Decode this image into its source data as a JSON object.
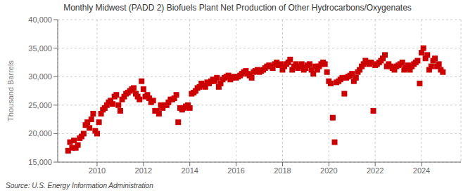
{
  "chart_data": {
    "type": "scatter",
    "title": "Monthly Midwest (PADD 2) Biofuels Plant Net Production of Other Hydrocarbons/Oxygenates",
    "ylabel": "Thousand Barrels",
    "annotations": [
      "Source: U.S. Energy Information Administration"
    ],
    "color": "#cc0000",
    "marker": "square",
    "grid": true,
    "xlim": [
      2008.3,
      2025.7
    ],
    "xticks": [
      2010,
      2012,
      2014,
      2016,
      2018,
      2020,
      2022,
      2024
    ],
    "ylim": [
      15000,
      40000
    ],
    "yticks": [
      {
        "value": 15000,
        "label": "15,000"
      },
      {
        "value": 20000,
        "label": "20,000"
      },
      {
        "value": 25000,
        "label": "25,000"
      },
      {
        "value": 30000,
        "label": "30,000"
      },
      {
        "value": 35000,
        "label": "35,000"
      },
      {
        "value": 40000,
        "label": "40,000"
      }
    ],
    "x": [
      2008.75,
      2008.83,
      2008.92,
      2009.0,
      2009.08,
      2009.17,
      2009.25,
      2009.33,
      2009.42,
      2009.5,
      2009.58,
      2009.67,
      2009.75,
      2009.83,
      2009.92,
      2010.0,
      2010.08,
      2010.17,
      2010.25,
      2010.33,
      2010.42,
      2010.5,
      2010.58,
      2010.67,
      2010.75,
      2010.83,
      2010.92,
      2011.0,
      2011.08,
      2011.17,
      2011.25,
      2011.33,
      2011.42,
      2011.5,
      2011.58,
      2011.67,
      2011.75,
      2011.83,
      2011.92,
      2012.0,
      2012.08,
      2012.17,
      2012.25,
      2012.33,
      2012.42,
      2012.5,
      2012.58,
      2012.67,
      2012.75,
      2012.83,
      2012.92,
      2013.0,
      2013.08,
      2013.17,
      2013.25,
      2013.33,
      2013.42,
      2013.5,
      2013.58,
      2013.67,
      2013.75,
      2013.83,
      2013.92,
      2014.0,
      2014.08,
      2014.17,
      2014.25,
      2014.33,
      2014.42,
      2014.5,
      2014.58,
      2014.67,
      2014.75,
      2014.83,
      2014.92,
      2015.0,
      2015.08,
      2015.17,
      2015.25,
      2015.33,
      2015.42,
      2015.5,
      2015.58,
      2015.67,
      2015.75,
      2015.83,
      2015.92,
      2016.0,
      2016.08,
      2016.17,
      2016.25,
      2016.33,
      2016.42,
      2016.5,
      2016.58,
      2016.67,
      2016.75,
      2016.83,
      2016.92,
      2017.0,
      2017.08,
      2017.17,
      2017.25,
      2017.33,
      2017.42,
      2017.5,
      2017.58,
      2017.67,
      2017.75,
      2017.83,
      2017.92,
      2018.0,
      2018.08,
      2018.17,
      2018.25,
      2018.33,
      2018.42,
      2018.5,
      2018.58,
      2018.67,
      2018.75,
      2018.83,
      2018.92,
      2019.0,
      2019.08,
      2019.17,
      2019.25,
      2019.33,
      2019.42,
      2019.5,
      2019.58,
      2019.67,
      2019.75,
      2019.83,
      2019.92,
      2020.0,
      2020.08,
      2020.17,
      2020.25,
      2020.33,
      2020.42,
      2020.5,
      2020.58,
      2020.67,
      2020.75,
      2020.83,
      2020.92,
      2021.0,
      2021.08,
      2021.17,
      2021.25,
      2021.33,
      2021.42,
      2021.5,
      2021.58,
      2021.67,
      2021.75,
      2021.83,
      2021.92,
      2022.0,
      2022.08,
      2022.17,
      2022.25,
      2022.33,
      2022.42,
      2022.5,
      2022.58,
      2022.67,
      2022.75,
      2022.83,
      2022.92,
      2023.0,
      2023.08,
      2023.17,
      2023.25,
      2023.33,
      2023.42,
      2023.5,
      2023.58,
      2023.67,
      2023.75,
      2023.83,
      2023.92,
      2024.0,
      2024.08,
      2024.17,
      2024.25,
      2024.33,
      2024.42,
      2024.5,
      2024.58,
      2024.67,
      2024.75,
      2024.83,
      2024.92
    ],
    "values": [
      17000,
      18500,
      17500,
      18800,
      17500,
      18000,
      19200,
      19500,
      20000,
      21500,
      22000,
      21000,
      22500,
      23500,
      20500,
      20000,
      22000,
      23500,
      24200,
      24500,
      25000,
      25500,
      25800,
      25200,
      26500,
      26800,
      25000,
      24000,
      26000,
      26500,
      27000,
      27200,
      27500,
      27800,
      28000,
      27000,
      26500,
      26000,
      29200,
      27800,
      26500,
      26800,
      26200,
      25500,
      25800,
      24000,
      24000,
      23500,
      25000,
      24500,
      25000,
      25000,
      25500,
      26000,
      26000,
      26200,
      26800,
      22000,
      24500,
      24200,
      24500,
      24800,
      25000,
      24500,
      27000,
      27200,
      27500,
      28000,
      28200,
      28800,
      28500,
      28200,
      29000,
      28800,
      29200,
      29500,
      29200,
      29800,
      28200,
      28800,
      29500,
      29800,
      30000,
      30200,
      29500,
      29800,
      30000,
      29800,
      30000,
      30200,
      30500,
      30800,
      31000,
      30500,
      30200,
      29800,
      30800,
      31000,
      31200,
      30800,
      31000,
      31200,
      31500,
      31800,
      32000,
      31800,
      31500,
      32200,
      32500,
      32000,
      32200,
      31200,
      31800,
      32200,
      32500,
      33000,
      31200,
      31800,
      32200,
      31500,
      31800,
      32200,
      31200,
      31500,
      32000,
      32200,
      31200,
      30500,
      31800,
      31200,
      31800,
      32200,
      32500,
      32200,
      30800,
      29200,
      28800,
      22800,
      18500,
      29000,
      29200,
      29500,
      29800,
      27000,
      29800,
      30000,
      30200,
      30500,
      29200,
      29800,
      30800,
      31200,
      31800,
      32200,
      32800,
      32500,
      32200,
      32500,
      24000,
      32000,
      32200,
      32500,
      32800,
      33200,
      33800,
      31800,
      32200,
      31800,
      31500,
      31200,
      31800,
      32000,
      32200,
      32500,
      31200,
      31500,
      32000,
      31200,
      31800,
      32200,
      32500,
      32800,
      28800,
      34200,
      35000,
      33200,
      33800,
      31200,
      31800,
      32800,
      33200,
      31800,
      32200,
      31200,
      30800
    ]
  }
}
